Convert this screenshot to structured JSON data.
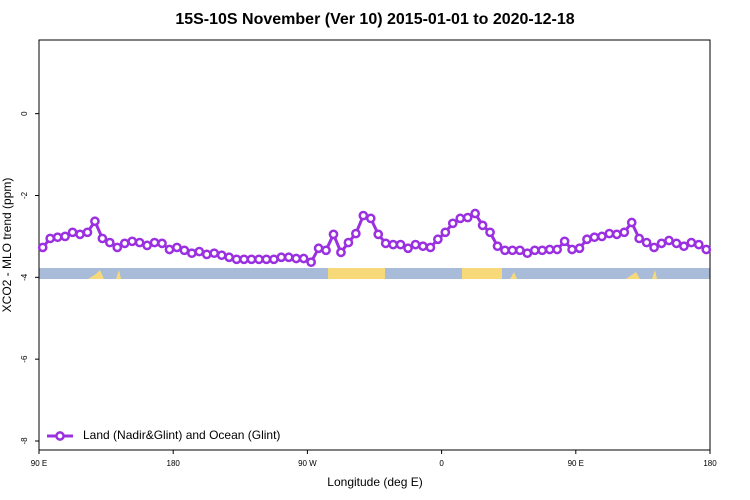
{
  "chart_data": {
    "type": "line",
    "title": "15S-10S November (Ver 10)   2015-01-01 to 2020-12-18",
    "x_label": "Longitude (deg E)",
    "y_label": "XCO2 - MLO trend (ppm)",
    "xlim": [
      90,
      540
    ],
    "xticks": [
      {
        "value": 90,
        "label": "90 E"
      },
      180,
      {
        "value": 270,
        "label": "90 W"
      },
      {
        "value": 360,
        "label": "0"
      },
      {
        "value": 450,
        "label": "90 E"
      },
      {
        "value": 540,
        "label": "180"
      }
    ],
    "ylim": [
      -8.22,
      1.8
    ],
    "yticks": [
      -8,
      -6,
      -4,
      -2,
      0
    ],
    "legend_position": "bottom-left",
    "x": [
      92.5,
      97.5,
      102.5,
      107.5,
      112.5,
      117.5,
      122.5,
      127.5,
      132.5,
      137.5,
      142.5,
      147.5,
      152.5,
      157.5,
      162.5,
      167.5,
      172.5,
      177.5,
      182.5,
      187.5,
      192.5,
      197.5,
      202.5,
      207.5,
      212.5,
      217.5,
      222.5,
      227.5,
      232.5,
      237.5,
      242.5,
      247.5,
      252.5,
      257.5,
      262.5,
      267.5,
      272.5,
      277.5,
      282.5,
      287.5,
      292.5,
      297.5,
      302.5,
      307.5,
      312.5,
      317.5,
      322.5,
      327.5,
      332.5,
      337.5,
      342.5,
      347.5,
      352.5,
      357.5,
      362.5,
      367.5,
      372.5,
      377.5,
      382.5,
      387.5,
      392.5,
      397.5,
      402.5,
      407.5,
      412.5,
      417.5,
      422.5,
      427.5,
      432.5,
      437.5,
      442.5,
      447.5,
      452.5,
      457.5,
      462.5,
      467.5,
      472.5,
      477.5,
      482.5,
      487.5,
      492.5,
      497.5,
      502.5,
      507.5,
      512.5,
      517.5,
      522.5,
      527.5,
      532.5,
      537.5
    ],
    "series": [
      {
        "name": "Land (Nadir&Glint) and Ocean (Glint)",
        "color": "#9b30e0",
        "values": [
          -3.27,
          -3.05,
          -3.02,
          -3.0,
          -2.9,
          -2.95,
          -2.9,
          -2.63,
          -3.05,
          -3.15,
          -3.27,
          -3.17,
          -3.12,
          -3.15,
          -3.22,
          -3.15,
          -3.17,
          -3.32,
          -3.27,
          -3.34,
          -3.41,
          -3.37,
          -3.44,
          -3.41,
          -3.46,
          -3.51,
          -3.56,
          -3.56,
          -3.56,
          -3.56,
          -3.56,
          -3.56,
          -3.51,
          -3.51,
          -3.54,
          -3.54,
          -3.63,
          -3.29,
          -3.34,
          -2.95,
          -3.39,
          -3.15,
          -2.93,
          -2.49,
          -2.56,
          -2.95,
          -3.17,
          -3.2,
          -3.2,
          -3.29,
          -3.2,
          -3.24,
          -3.27,
          -3.07,
          -2.9,
          -2.68,
          -2.56,
          -2.54,
          -2.44,
          -2.73,
          -2.9,
          -3.24,
          -3.34,
          -3.34,
          -3.34,
          -3.41,
          -3.34,
          -3.34,
          -3.32,
          -3.32,
          -3.12,
          -3.32,
          -3.29,
          -3.07,
          -3.02,
          -3.0,
          -2.93,
          -2.95,
          -2.9,
          -2.66,
          -3.05,
          -3.15,
          -3.27,
          -3.17,
          -3.1,
          -3.17,
          -3.24,
          -3.15,
          -3.2,
          -3.32
        ]
      }
    ]
  }
}
